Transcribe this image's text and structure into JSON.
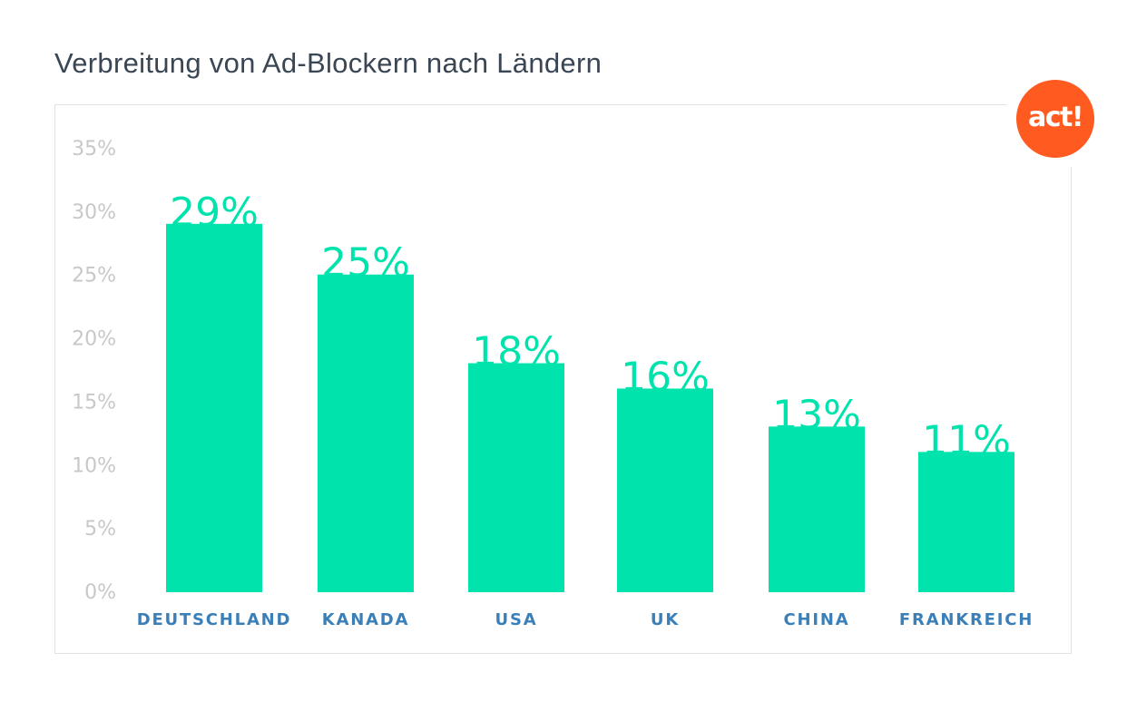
{
  "title": "Verbreitung von Ad-Blockern nach Ländern",
  "logo": {
    "text": "act!",
    "color": "#ff5a1f"
  },
  "colors": {
    "bar": "#00e3ad",
    "tick": "#c8c8c8",
    "category": "#3b7fb8",
    "title": "#3a4654"
  },
  "chart_data": {
    "type": "bar",
    "categories": [
      "DEUTSCHLAND",
      "KANADA",
      "USA",
      "UK",
      "CHINA",
      "FRANKREICH"
    ],
    "values": [
      29,
      25,
      18,
      16,
      13,
      11
    ],
    "value_labels": [
      "29%",
      "25%",
      "18%",
      "16%",
      "13%",
      "11%"
    ],
    "y_ticks": [
      "0%",
      "5%",
      "10%",
      "15%",
      "20%",
      "25%",
      "30%",
      "35%"
    ],
    "ylim": [
      0,
      35
    ],
    "grid": false,
    "legend": "none"
  }
}
